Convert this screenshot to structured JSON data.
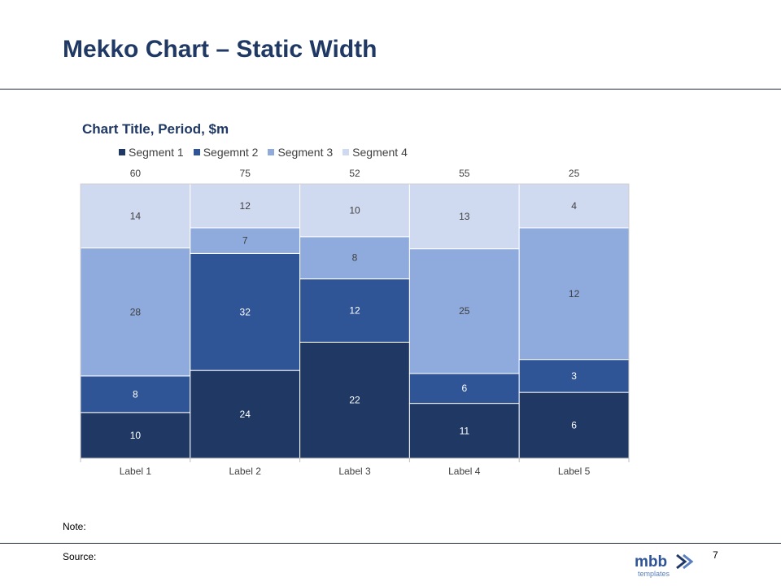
{
  "slide": {
    "title": "Mekko Chart – Static Width",
    "note_label": "Note:",
    "source_label": "Source:",
    "page_number": "7",
    "logo_text": "mbb",
    "logo_subtext": "templates"
  },
  "colors": {
    "segment1": "#1f3864",
    "segment2": "#2f5597",
    "segment3": "#8faadc",
    "segment4": "#cfd9f0",
    "title": "#1f3864"
  },
  "chart_data": {
    "type": "bar",
    "variant": "mekko-static-width-stacked-100",
    "title": "Chart Title, Period, $m",
    "categories": [
      "Label 1",
      "Label 2",
      "Label 3",
      "Label 4",
      "Label 5"
    ],
    "totals": [
      60,
      75,
      52,
      55,
      25
    ],
    "series": [
      {
        "name": "Segment 1",
        "values": [
          10,
          24,
          22,
          11,
          6
        ]
      },
      {
        "name": "Segemnt 2",
        "values": [
          8,
          32,
          12,
          6,
          3
        ]
      },
      {
        "name": "Segment 3",
        "values": [
          28,
          7,
          8,
          25,
          12
        ]
      },
      {
        "name": "Segment 4",
        "values": [
          14,
          12,
          10,
          13,
          4
        ]
      }
    ],
    "legend": "top",
    "grid": false
  }
}
